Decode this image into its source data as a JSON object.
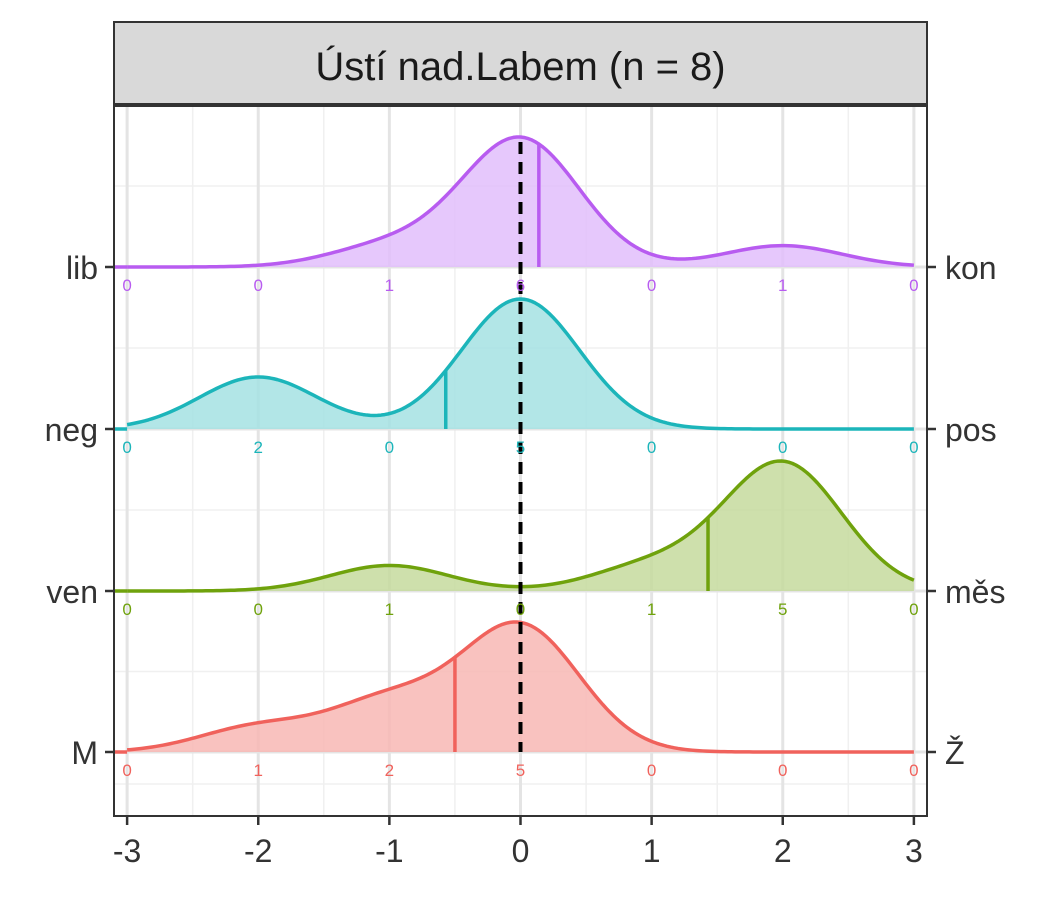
{
  "chart_data": {
    "type": "ridgeline",
    "facet_title": "Ústí nad.Labem (n = 8)",
    "xlim": [
      -3.1,
      3.1
    ],
    "x_ticks": [
      -3,
      -2,
      -1,
      0,
      1,
      2,
      3
    ],
    "x_tick_labels": [
      "-3",
      "-2",
      "-1",
      "0",
      "1",
      "2",
      "3"
    ],
    "reference_line_x": 0,
    "grid": true,
    "series": [
      {
        "left_label": "lib",
        "right_label": "kon",
        "color": "#B85CF0",
        "fill": "#E2BEFB",
        "median": 0.14,
        "counts": [
          0,
          0,
          1,
          6,
          0,
          1,
          0
        ]
      },
      {
        "left_label": "neg",
        "right_label": "pos",
        "color": "#1CB5BA",
        "fill": "#A5E2E3",
        "median": -0.57,
        "counts": [
          0,
          2,
          0,
          5,
          0,
          0,
          0
        ]
      },
      {
        "left_label": "ven",
        "right_label": "měs",
        "color": "#6FA20C",
        "fill": "#C6DB9E",
        "median": 1.43,
        "counts": [
          0,
          0,
          1,
          0,
          1,
          5,
          0
        ]
      },
      {
        "left_label": "M",
        "right_label": "Ž",
        "color": "#F0625C",
        "fill": "#F8B7B4",
        "median": -0.5,
        "counts": [
          0,
          1,
          2,
          5,
          0,
          0,
          0
        ]
      }
    ]
  }
}
